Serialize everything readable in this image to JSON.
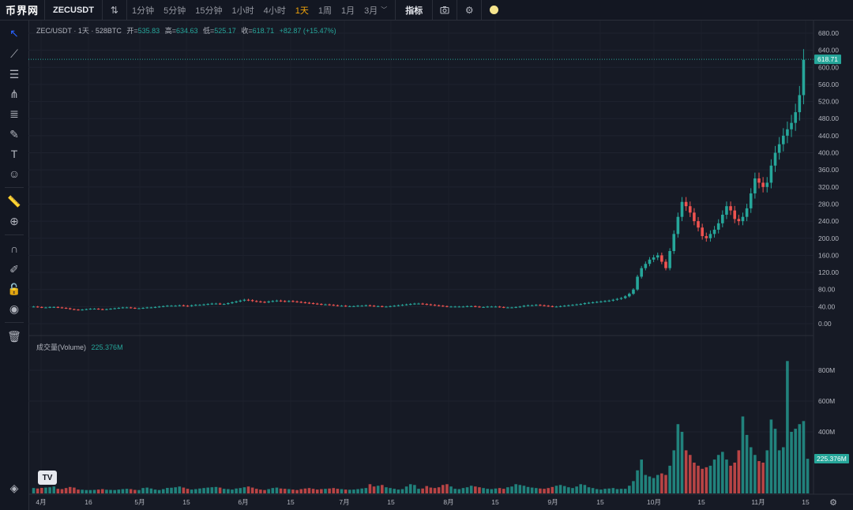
{
  "topbar": {
    "logo": "币界网",
    "symbol": "ZECUSDT",
    "intervals": [
      "1分钟",
      "5分钟",
      "15分钟",
      "1小时",
      "4小时",
      "1天",
      "1周",
      "1月",
      "3月"
    ],
    "active_interval": "1天",
    "indicators_label": "指标"
  },
  "legend": {
    "pair": "ZEC/USDT · 1天 · 528BTC",
    "open_label": "开=",
    "open": "535.83",
    "high_label": "高=",
    "high": "634.63",
    "low_label": "低=",
    "low": "525.17",
    "close_label": "收=",
    "close": "618.71",
    "change": "+82.87 (+15.47%)"
  },
  "volume_legend": {
    "label": "成交量(Volume)",
    "value": "225.376M"
  },
  "colors": {
    "up": "#26a69a",
    "down": "#ef5350",
    "bg": "#161a25",
    "grid": "#212533",
    "accent": "#f0a30a"
  },
  "chart_data": [
    {
      "type": "candlestick",
      "title": "ZEC/USDT · 1天",
      "ylim": [
        0,
        680
      ],
      "yticks": [
        "680.00",
        "640.00",
        "600.00",
        "560.00",
        "520.00",
        "480.00",
        "440.00",
        "400.00",
        "360.00",
        "320.00",
        "280.00",
        "240.00",
        "200.00",
        "160.00",
        "120.00",
        "80.00",
        "40.00",
        "0.00"
      ],
      "last_price": "618.71",
      "xticks": [
        "4月",
        "16",
        "5月",
        "15",
        "6月",
        "15",
        "7月",
        "15",
        "8月",
        "15",
        "9月",
        "15",
        "10月",
        "15",
        "11月",
        "15"
      ],
      "close": [
        40,
        39,
        38,
        38,
        39,
        39,
        38,
        37,
        36,
        34,
        33,
        32,
        33,
        34,
        35,
        35,
        34,
        33,
        34,
        35,
        36,
        37,
        38,
        38,
        37,
        36,
        36,
        37,
        38,
        38,
        39,
        40,
        41,
        42,
        42,
        42,
        43,
        42,
        41,
        43,
        44,
        44,
        45,
        46,
        47,
        47,
        46,
        46,
        48,
        50,
        52,
        54,
        56,
        55,
        53,
        52,
        51,
        50,
        52,
        53,
        54,
        53,
        52,
        53,
        52,
        51,
        50,
        49,
        48,
        47,
        46,
        45,
        45,
        44,
        43,
        42,
        42,
        41,
        41,
        41,
        42,
        42,
        43,
        42,
        41,
        41,
        40,
        40,
        41,
        42,
        43,
        44,
        45,
        46,
        47,
        47,
        46,
        45,
        44,
        43,
        42,
        41,
        40,
        40,
        40,
        40,
        40,
        41,
        41,
        40,
        39,
        39,
        40,
        40,
        40,
        39,
        38,
        38,
        38,
        39,
        40,
        42,
        43,
        43,
        44,
        43,
        42,
        41,
        40,
        40,
        41,
        42,
        43,
        44,
        45,
        46,
        48,
        49,
        50,
        51,
        52,
        53,
        54,
        56,
        58,
        60,
        64,
        70,
        80,
        110,
        130,
        140,
        150,
        155,
        160,
        145,
        130,
        170,
        210,
        250,
        285,
        275,
        260,
        240,
        225,
        205,
        200,
        210,
        220,
        235,
        255,
        275,
        265,
        245,
        240,
        250,
        270,
        305,
        340,
        330,
        320,
        330,
        370,
        400,
        420,
        440,
        455,
        470,
        495,
        535,
        618
      ],
      "volume_M": [
        35,
        32,
        36,
        38,
        40,
        45,
        30,
        28,
        35,
        42,
        38,
        25,
        24,
        22,
        22,
        23,
        25,
        28,
        24,
        23,
        22,
        25,
        28,
        30,
        28,
        23,
        22,
        35,
        38,
        32,
        25,
        22,
        28,
        36,
        37,
        40,
        45,
        38,
        30,
        25,
        28,
        32,
        35,
        38,
        40,
        42,
        38,
        30,
        28,
        25,
        32,
        35,
        40,
        45,
        38,
        30,
        25,
        22,
        28,
        35,
        38,
        32,
        30,
        28,
        25,
        22,
        28,
        32,
        35,
        30,
        25,
        28,
        30,
        32,
        35,
        30,
        28,
        25,
        24,
        25,
        28,
        32,
        35,
        60,
        45,
        50,
        55,
        40,
        35,
        30,
        25,
        28,
        45,
        60,
        55,
        30,
        32,
        48,
        38,
        35,
        40,
        55,
        60,
        45,
        30,
        28,
        35,
        40,
        50,
        45,
        40,
        35,
        30,
        28,
        32,
        35,
        30,
        40,
        45,
        60,
        55,
        50,
        42,
        38,
        35,
        32,
        30,
        35,
        42,
        50,
        55,
        48,
        40,
        35,
        45,
        60,
        55,
        40,
        35,
        28,
        25,
        30,
        32,
        35,
        28,
        30,
        30,
        50,
        80,
        150,
        220,
        120,
        110,
        100,
        120,
        130,
        120,
        180,
        280,
        450,
        400,
        280,
        250,
        200,
        180,
        160,
        170,
        180,
        220,
        250,
        270,
        220,
        180,
        200,
        280,
        500,
        380,
        300,
        250,
        210,
        200,
        280,
        480,
        420,
        280,
        300,
        860,
        400,
        420,
        450,
        470,
        225
      ]
    }
  ]
}
